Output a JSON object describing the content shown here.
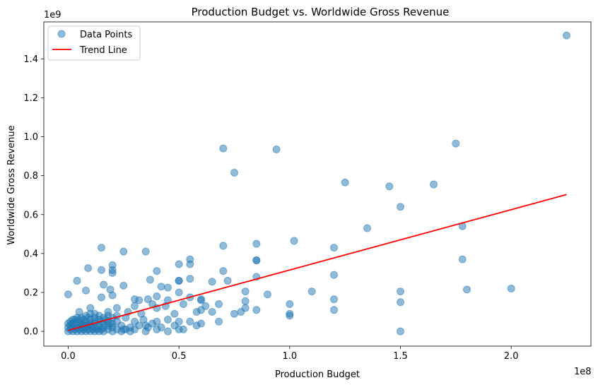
{
  "chart_data": {
    "type": "scatter",
    "title": "Production Budget vs. Worldwide Gross Revenue",
    "xlabel": "Production Budget",
    "ylabel": "Worldwide Gross Revenue",
    "x_offset_label": "1e8",
    "y_offset_label": "1e9",
    "xlim": [
      -0.11,
      2.36
    ],
    "ylim": [
      -0.076,
      1.59
    ],
    "x_ticks": [
      {
        "value": 0.0,
        "label": "0.0"
      },
      {
        "value": 0.5,
        "label": "0.5"
      },
      {
        "value": 1.0,
        "label": "1.0"
      },
      {
        "value": 1.5,
        "label": "1.5"
      },
      {
        "value": 2.0,
        "label": "2.0"
      }
    ],
    "y_ticks": [
      {
        "value": 0.0,
        "label": "0.0"
      },
      {
        "value": 0.2,
        "label": "0.2"
      },
      {
        "value": 0.4,
        "label": "0.4"
      },
      {
        "value": 0.6,
        "label": "0.6"
      },
      {
        "value": 0.8,
        "label": "0.8"
      },
      {
        "value": 1.0,
        "label": "1.0"
      },
      {
        "value": 1.2,
        "label": "1.2"
      },
      {
        "value": 1.4,
        "label": "1.4"
      }
    ],
    "grid": false,
    "legend_position": "top-left",
    "series": [
      {
        "name": "Data Points",
        "kind": "scatter",
        "color": "#1f77b4",
        "points": [
          [
            2.25,
            1.52
          ],
          [
            0.7,
            0.94
          ],
          [
            0.94,
            0.935
          ],
          [
            1.75,
            0.965
          ],
          [
            0.75,
            0.815
          ],
          [
            1.25,
            0.765
          ],
          [
            1.45,
            0.745
          ],
          [
            1.65,
            0.755
          ],
          [
            1.5,
            0.64
          ],
          [
            1.35,
            0.53
          ],
          [
            1.78,
            0.54
          ],
          [
            1.78,
            0.37
          ],
          [
            1.02,
            0.465
          ],
          [
            1.2,
            0.43
          ],
          [
            0.85,
            0.45
          ],
          [
            0.7,
            0.44
          ],
          [
            0.15,
            0.43
          ],
          [
            0.25,
            0.41
          ],
          [
            0.35,
            0.41
          ],
          [
            0.55,
            0.37
          ],
          [
            0.55,
            0.345
          ],
          [
            0.5,
            0.345
          ],
          [
            0.85,
            0.365
          ],
          [
            0.85,
            0.365
          ],
          [
            0.4,
            0.31
          ],
          [
            0.7,
            0.31
          ],
          [
            0.85,
            0.28
          ],
          [
            1.2,
            0.29
          ],
          [
            0.09,
            0.325
          ],
          [
            0.15,
            0.315
          ],
          [
            0.2,
            0.34
          ],
          [
            0.2,
            0.315
          ],
          [
            0.2,
            0.3
          ],
          [
            0.04,
            0.26
          ],
          [
            0.37,
            0.265
          ],
          [
            0.45,
            0.225
          ],
          [
            0.5,
            0.26
          ],
          [
            0.5,
            0.26
          ],
          [
            0.55,
            0.27
          ],
          [
            0.65,
            0.255
          ],
          [
            0.72,
            0.26
          ],
          [
            0.8,
            0.205
          ],
          [
            0.9,
            0.19
          ],
          [
            1.1,
            0.205
          ],
          [
            1.5,
            0.205
          ],
          [
            1.8,
            0.215
          ],
          [
            2.0,
            0.22
          ],
          [
            0.0,
            0.19
          ],
          [
            0.08,
            0.21
          ],
          [
            0.16,
            0.24
          ],
          [
            0.19,
            0.215
          ],
          [
            0.25,
            0.235
          ],
          [
            0.4,
            0.18
          ],
          [
            0.42,
            0.23
          ],
          [
            0.55,
            0.175
          ],
          [
            0.6,
            0.165
          ],
          [
            0.68,
            0.14
          ],
          [
            0.8,
            0.155
          ],
          [
            1.0,
            0.14
          ],
          [
            1.2,
            0.165
          ],
          [
            1.5,
            0.15
          ],
          [
            0.3,
            0.165
          ],
          [
            0.32,
            0.16
          ],
          [
            0.15,
            0.175
          ],
          [
            0.2,
            0.185
          ],
          [
            0.36,
            0.165
          ],
          [
            0.38,
            0.14
          ],
          [
            0.45,
            0.16
          ],
          [
            0.5,
            0.2
          ],
          [
            0.6,
            0.16
          ],
          [
            0.62,
            0.13
          ],
          [
            0.78,
            0.1
          ],
          [
            0.8,
            0.12
          ],
          [
            0.1,
            0.12
          ],
          [
            0.12,
            0.09
          ],
          [
            0.18,
            0.1
          ],
          [
            0.22,
            0.12
          ],
          [
            0.27,
            0.1
          ],
          [
            0.3,
            0.13
          ],
          [
            0.33,
            0.09
          ],
          [
            0.4,
            0.12
          ],
          [
            0.44,
            0.13
          ],
          [
            0.48,
            0.09
          ],
          [
            0.52,
            0.14
          ],
          [
            0.58,
            0.1
          ],
          [
            0.6,
            0.11
          ],
          [
            0.65,
            0.1
          ],
          [
            0.75,
            0.09
          ],
          [
            0.85,
            0.11
          ],
          [
            1.0,
            0.09
          ],
          [
            1.0,
            0.08
          ],
          [
            1.2,
            0.11
          ],
          [
            0.02,
            0.06
          ],
          [
            0.04,
            0.07
          ],
          [
            0.05,
            0.1
          ],
          [
            0.06,
            0.04
          ],
          [
            0.07,
            0.02
          ],
          [
            0.08,
            0.05
          ],
          [
            0.09,
            0.03
          ],
          [
            0.1,
            0.06
          ],
          [
            0.11,
            0.02
          ],
          [
            0.12,
            0.04
          ],
          [
            0.13,
            0.01
          ],
          [
            0.14,
            0.03
          ],
          [
            0.15,
            0.05
          ],
          [
            0.16,
            0.02
          ],
          [
            0.17,
            0.06
          ],
          [
            0.18,
            0.03
          ],
          [
            0.19,
            0.04
          ],
          [
            0.2,
            0.02
          ],
          [
            0.22,
            0.05
          ],
          [
            0.24,
            0.03
          ],
          [
            0.26,
            0.07
          ],
          [
            0.28,
            0.02
          ],
          [
            0.3,
            0.05
          ],
          [
            0.32,
            0.03
          ],
          [
            0.34,
            0.06
          ],
          [
            0.36,
            0.02
          ],
          [
            0.38,
            0.04
          ],
          [
            0.4,
            0.05
          ],
          [
            0.42,
            0.02
          ],
          [
            0.45,
            0.06
          ],
          [
            0.48,
            0.03
          ],
          [
            0.5,
            0.05
          ],
          [
            0.52,
            0.01
          ],
          [
            0.55,
            0.05
          ],
          [
            0.58,
            0.03
          ],
          [
            0.6,
            0.04
          ],
          [
            0.68,
            0.05
          ],
          [
            0.5,
            0.01
          ],
          [
            0.25,
            0.01
          ],
          [
            0.35,
            0.03
          ],
          [
            1.5,
            0.0
          ],
          [
            0.0,
            0.0
          ],
          [
            0.01,
            0.01
          ],
          [
            0.01,
            0.03
          ],
          [
            0.02,
            0.0
          ],
          [
            0.02,
            0.02
          ],
          [
            0.03,
            0.01
          ],
          [
            0.03,
            0.04
          ],
          [
            0.04,
            0.0
          ],
          [
            0.04,
            0.02
          ],
          [
            0.05,
            0.01
          ],
          [
            0.05,
            0.03
          ],
          [
            0.06,
            0.0
          ],
          [
            0.06,
            0.02
          ],
          [
            0.07,
            0.01
          ],
          [
            0.07,
            0.04
          ],
          [
            0.08,
            0.0
          ],
          [
            0.08,
            0.02
          ],
          [
            0.09,
            0.01
          ],
          [
            0.1,
            0.0
          ],
          [
            0.1,
            0.03
          ],
          [
            0.11,
            0.01
          ],
          [
            0.12,
            0.0
          ],
          [
            0.13,
            0.02
          ],
          [
            0.14,
            0.0
          ],
          [
            0.15,
            0.01
          ],
          [
            0.16,
            0.0
          ],
          [
            0.18,
            0.01
          ],
          [
            0.2,
            0.0
          ],
          [
            0.22,
            0.01
          ],
          [
            0.24,
            0.0
          ],
          [
            0.26,
            0.01
          ],
          [
            0.28,
            0.0
          ],
          [
            0.3,
            0.01
          ],
          [
            0.35,
            0.0
          ],
          [
            0.4,
            0.01
          ],
          [
            0.45,
            0.0
          ],
          [
            0.0,
            0.02
          ],
          [
            0.0,
            0.04
          ],
          [
            0.01,
            0.05
          ],
          [
            0.02,
            0.04
          ],
          [
            0.03,
            0.06
          ],
          [
            0.04,
            0.05
          ],
          [
            0.05,
            0.06
          ],
          [
            0.06,
            0.07
          ],
          [
            0.07,
            0.06
          ],
          [
            0.08,
            0.08
          ],
          [
            0.09,
            0.07
          ],
          [
            0.1,
            0.09
          ],
          [
            0.12,
            0.07
          ],
          [
            0.14,
            0.08
          ],
          [
            0.16,
            0.07
          ],
          [
            0.18,
            0.08
          ],
          [
            0.2,
            0.07
          ],
          [
            0.22,
            0.08
          ],
          [
            0.1,
            0.04
          ],
          [
            0.12,
            0.05
          ],
          [
            0.14,
            0.06
          ],
          [
            0.16,
            0.04
          ],
          [
            0.18,
            0.05
          ],
          [
            0.2,
            0.04
          ]
        ]
      },
      {
        "name": "Trend Line",
        "kind": "line",
        "color": "#ff0000",
        "points": [
          [
            0.0,
            0.005
          ],
          [
            2.25,
            0.703
          ]
        ]
      }
    ]
  }
}
